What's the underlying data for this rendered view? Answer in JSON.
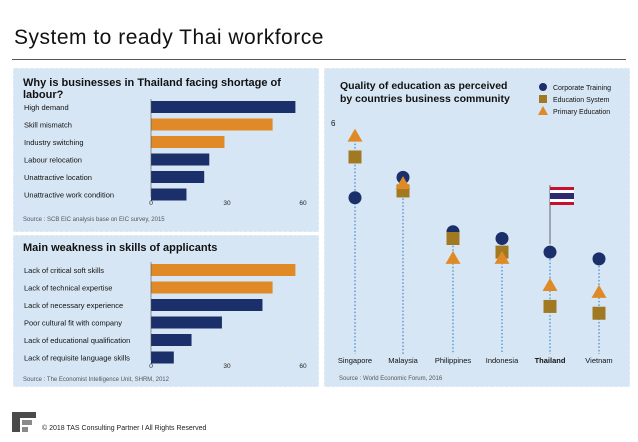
{
  "page": {
    "title": "System to ready Thai workforce",
    "footer": "© 2018 TAS Consulting Partner  I  All Rights Reserved"
  },
  "colors": {
    "navy": "#1b2f6a",
    "orange": "#e08a27",
    "gold": "#a07922",
    "panel": "#d7e6f4"
  },
  "icons": [
    "company-logo-icon",
    "thai-flag-icon"
  ],
  "chart_data": [
    {
      "type": "bar",
      "orientation": "horizontal",
      "title": "Why is businesses in Thailand  facing shortage of labour?",
      "categories": [
        "High demand",
        "Skill mismatch",
        "Industry switching",
        "Labour relocation",
        "Unattractive location",
        "Unattractive work condition"
      ],
      "values": [
        57,
        48,
        29,
        23,
        21,
        14
      ],
      "bar_colors": [
        "#1b2f6a",
        "#e08a27",
        "#e08a27",
        "#1b2f6a",
        "#1b2f6a",
        "#1b2f6a"
      ],
      "xticks": [
        "0",
        "30",
        "60"
      ],
      "xlim": [
        0,
        60
      ],
      "source": "Source : SCB EIC analysis base on EIC survey, 2015"
    },
    {
      "type": "bar",
      "orientation": "horizontal",
      "title": "Main  weakness in skills of applicants",
      "categories": [
        "Lack of critical soft skills",
        "Lack of technical expertise",
        "Lack of necessary experience",
        "Poor cultural  fit with company",
        "Lack of educational qualification",
        "Lack of requisite language  skills"
      ],
      "values": [
        57,
        48,
        44,
        28,
        16,
        9
      ],
      "bar_colors": [
        "#e08a27",
        "#e08a27",
        "#1b2f6a",
        "#1b2f6a",
        "#1b2f6a",
        "#1b2f6a"
      ],
      "xticks": [
        "0",
        "30",
        "60"
      ],
      "xlim": [
        0,
        60
      ],
      "source": "Source : The Economist Intelligence Unit, SHRM, 2012"
    },
    {
      "type": "scatter",
      "title": "Quality of education as perceived by countries business community",
      "title_lines": [
        "Quality of education as perceived",
        "by countries business community"
      ],
      "ytick_label": "6",
      "ylim": [
        2.6,
        6.0
      ],
      "categories": [
        "Singapore",
        "Malaysia",
        "Philippines",
        "Indonesia",
        "Thailand",
        "Vietnam"
      ],
      "highlight_category": "Thailand",
      "series": [
        {
          "name": "Corporate Training",
          "marker": "circle",
          "color": "#1b2f6a",
          "values": [
            4.9,
            5.2,
            4.4,
            4.3,
            4.1,
            4.0
          ]
        },
        {
          "name": "Education System",
          "marker": "square",
          "color": "#a07922",
          "values": [
            5.5,
            5.0,
            4.3,
            4.1,
            3.3,
            3.2
          ]
        },
        {
          "name": "Primary Education",
          "marker": "triangle",
          "color": "#e08a27",
          "values": [
            5.8,
            5.1,
            4.0,
            4.0,
            3.6,
            3.5
          ]
        }
      ],
      "source": "Source : World Economic Forum, 2016"
    }
  ]
}
